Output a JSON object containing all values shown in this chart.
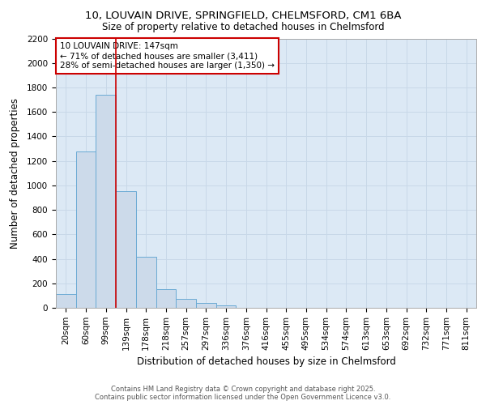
{
  "title_line1": "10, LOUVAIN DRIVE, SPRINGFIELD, CHELMSFORD, CM1 6BA",
  "title_line2": "Size of property relative to detached houses in Chelmsford",
  "xlabel": "Distribution of detached houses by size in Chelmsford",
  "ylabel": "Number of detached properties",
  "footer_line1": "Contains HM Land Registry data © Crown copyright and database right 2025.",
  "footer_line2": "Contains public sector information licensed under the Open Government Licence v3.0.",
  "bar_labels": [
    "20sqm",
    "60sqm",
    "99sqm",
    "139sqm",
    "178sqm",
    "218sqm",
    "257sqm",
    "297sqm",
    "336sqm",
    "376sqm",
    "416sqm",
    "455sqm",
    "495sqm",
    "534sqm",
    "574sqm",
    "613sqm",
    "653sqm",
    "692sqm",
    "732sqm",
    "771sqm",
    "811sqm"
  ],
  "bar_values": [
    110,
    1280,
    1740,
    950,
    420,
    150,
    75,
    38,
    20,
    0,
    0,
    0,
    0,
    0,
    0,
    0,
    0,
    0,
    0,
    0,
    0
  ],
  "bar_color": "#ccdaea",
  "bar_edge_color": "#6aaad4",
  "annotation_box_text": "10 LOUVAIN DRIVE: 147sqm\n← 71% of detached houses are smaller (3,411)\n28% of semi-detached houses are larger (1,350) →",
  "annotation_box_color": "#ffffff",
  "annotation_box_edge_color": "#cc0000",
  "redline_bin": 2.5,
  "ylim": [
    0,
    2200
  ],
  "yticks": [
    0,
    200,
    400,
    600,
    800,
    1000,
    1200,
    1400,
    1600,
    1800,
    2000,
    2200
  ],
  "grid_color": "#c8d8e8",
  "bg_color": "#dce9f5",
  "fig_bg_color": "#ffffff",
  "title_fontsize": 9.5,
  "subtitle_fontsize": 8.5,
  "xlabel_fontsize": 8.5,
  "ylabel_fontsize": 8.5,
  "tick_fontsize": 7.5,
  "footer_fontsize": 6.0,
  "annot_fontsize": 7.5
}
